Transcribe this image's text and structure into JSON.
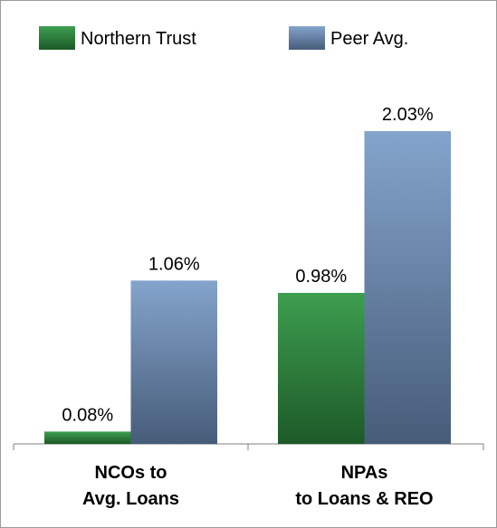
{
  "chart_data": {
    "type": "bar",
    "categories": [
      "NCOs to\nAvg. Loans",
      "NPAs\nto Loans & REO"
    ],
    "series": [
      {
        "name": "Northern Trust",
        "color": "#2e8540",
        "values": [
          0.08,
          0.98
        ],
        "value_labels": [
          "0.08%",
          "0.98%"
        ]
      },
      {
        "name": "Peer Avg.",
        "color": "#6684ab",
        "values": [
          1.06,
          2.03
        ],
        "value_labels": [
          "1.06%",
          "2.03%"
        ]
      }
    ],
    "legend": "top"
  }
}
